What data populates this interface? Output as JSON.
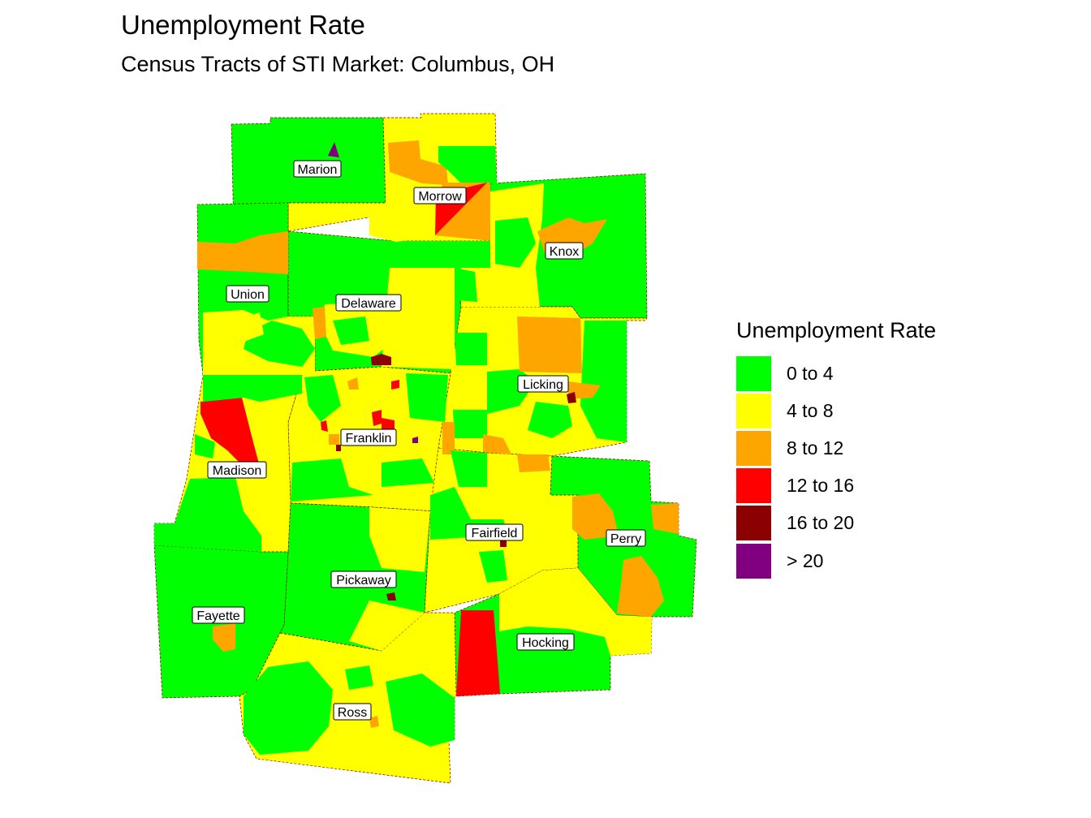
{
  "title": "Unemployment Rate",
  "subtitle": "Census Tracts of STI Market: Columbus, OH",
  "legend": {
    "title": "Unemployment Rate",
    "items": [
      {
        "label": "0 to 4",
        "color": "#00FF00"
      },
      {
        "label": "4 to 8",
        "color": "#FFFF00"
      },
      {
        "label": "8 to 12",
        "color": "#FFA500"
      },
      {
        "label": "12 to 16",
        "color": "#FF0000"
      },
      {
        "label": "16 to 20",
        "color": "#8B0000"
      },
      {
        "label": "> 20",
        "color": "#800080"
      }
    ]
  },
  "counties": [
    {
      "name": "Marion",
      "class": "0 to 4"
    },
    {
      "name": "Morrow",
      "class": "4 to 8"
    },
    {
      "name": "Knox",
      "class": "0 to 4"
    },
    {
      "name": "Union",
      "class": "0 to 4"
    },
    {
      "name": "Delaware",
      "class": "0 to 4"
    },
    {
      "name": "Licking",
      "class": "4 to 8"
    },
    {
      "name": "Franklin",
      "class": "4 to 8"
    },
    {
      "name": "Madison",
      "class": "4 to 8"
    },
    {
      "name": "Fairfield",
      "class": "4 to 8"
    },
    {
      "name": "Perry",
      "class": "0 to 4"
    },
    {
      "name": "Pickaway",
      "class": "0 to 4"
    },
    {
      "name": "Fayette",
      "class": "0 to 4"
    },
    {
      "name": "Hocking",
      "class": "0 to 4"
    },
    {
      "name": "Ross",
      "class": "4 to 8"
    }
  ]
}
